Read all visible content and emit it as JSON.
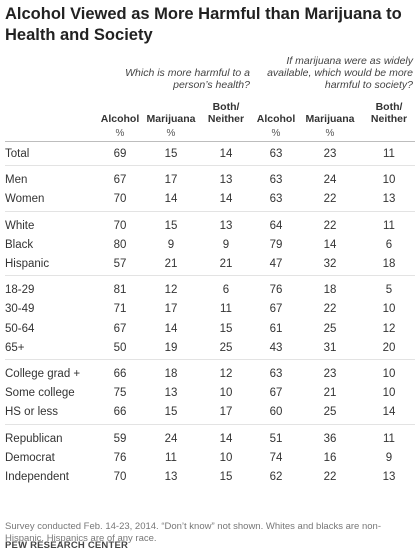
{
  "title": "Alcohol Viewed as More Harmful than Marijuana to Health and Society",
  "questions": {
    "health": "Which is more harmful to a person’s health?",
    "society": "If marijuana were as widely available, which would be more harmful to society?"
  },
  "columns": {
    "alcohol": "Alcohol",
    "marijuana": "Marijuana",
    "both_line1": "Both/",
    "both_line2": "Neither",
    "pct": "%"
  },
  "chart_data": {
    "type": "table",
    "title": "Alcohol Viewed as More Harmful than Marijuana to Health and Society",
    "column_groups": [
      {
        "question": "Which is more harmful to a person’s health?",
        "columns": [
          "Alcohol",
          "Marijuana",
          "Both/Neither"
        ]
      },
      {
        "question": "If marijuana were as widely available, which would be more harmful to society?",
        "columns": [
          "Alcohol",
          "Marijuana",
          "Both/Neither"
        ]
      }
    ],
    "rows": [
      {
        "label": "Total",
        "values": [
          "69",
          "15",
          "14",
          "63",
          "23",
          "11"
        ]
      },
      {
        "label": "Men",
        "values": [
          "67",
          "17",
          "13",
          "63",
          "24",
          "10"
        ]
      },
      {
        "label": "Women",
        "values": [
          "70",
          "14",
          "14",
          "63",
          "22",
          "13"
        ]
      },
      {
        "label": "White",
        "values": [
          "70",
          "15",
          "13",
          "64",
          "22",
          "11"
        ]
      },
      {
        "label": "Black",
        "values": [
          "80",
          "9",
          "9",
          "79",
          "14",
          "6"
        ]
      },
      {
        "label": "Hispanic",
        "values": [
          "57",
          "21",
          "21",
          "47",
          "32",
          "18"
        ]
      },
      {
        "label": "18-29",
        "values": [
          "81",
          "12",
          "6",
          "76",
          "18",
          "5"
        ]
      },
      {
        "label": "30-49",
        "values": [
          "71",
          "17",
          "11",
          "67",
          "22",
          "10"
        ]
      },
      {
        "label": "50-64",
        "values": [
          "67",
          "14",
          "15",
          "61",
          "25",
          "12"
        ]
      },
      {
        "label": "65+",
        "values": [
          "50",
          "19",
          "25",
          "43",
          "31",
          "20"
        ]
      },
      {
        "label": "College grad +",
        "values": [
          "66",
          "18",
          "12",
          "63",
          "23",
          "10"
        ]
      },
      {
        "label": "Some college",
        "values": [
          "75",
          "13",
          "10",
          "67",
          "21",
          "10"
        ]
      },
      {
        "label": "HS or less",
        "values": [
          "66",
          "15",
          "17",
          "60",
          "25",
          "14"
        ]
      },
      {
        "label": "Republican",
        "values": [
          "59",
          "24",
          "14",
          "51",
          "36",
          "11"
        ]
      },
      {
        "label": "Democrat",
        "values": [
          "76",
          "11",
          "10",
          "74",
          "16",
          "9"
        ]
      },
      {
        "label": "Independent",
        "values": [
          "70",
          "13",
          "15",
          "62",
          "22",
          "13"
        ]
      }
    ]
  },
  "footnote": "Survey conducted Feb. 14-23, 2014. “Don’t know” not shown. Whites and blacks are non-Hispanic. Hispanics are of any race.",
  "source": "PEW RESEARCH CENTER"
}
